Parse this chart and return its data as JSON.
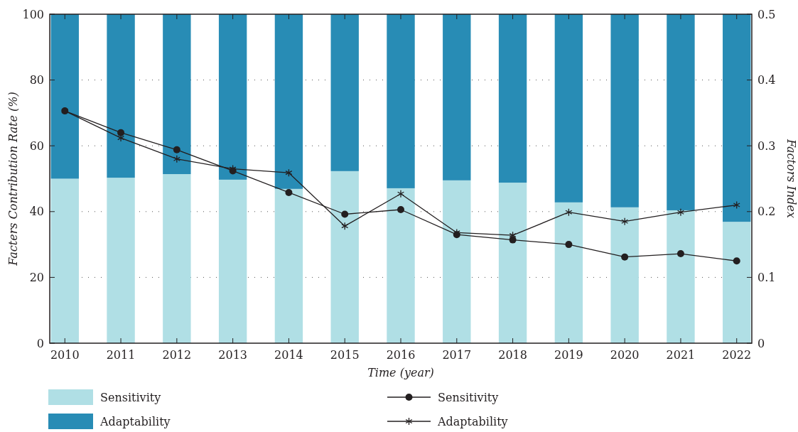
{
  "chart_data": {
    "type": "bar",
    "stacked": true,
    "xlabel": "Time (year)",
    "ylabel": "Facters Contribution Rate (%)",
    "y2label": "Factors Index",
    "categories": [
      "2010",
      "2011",
      "2012",
      "2013",
      "2014",
      "2015",
      "2016",
      "2017",
      "2018",
      "2019",
      "2020",
      "2021",
      "2022"
    ],
    "series": [
      {
        "name": "Sensitivity",
        "type": "bar",
        "color": "#b0dfe5",
        "values": [
          50,
          50.3,
          51.4,
          49.7,
          46.9,
          52.3,
          47.1,
          49.5,
          48.8,
          42.8,
          41.3,
          40.4,
          36.9
        ]
      },
      {
        "name": "Adaptability",
        "type": "bar",
        "color": "#288cb5",
        "values": [
          50,
          49.7,
          48.6,
          50.3,
          53.1,
          47.7,
          52.9,
          50.5,
          51.2,
          57.2,
          58.7,
          59.6,
          63.1
        ]
      },
      {
        "name": "Sensitivity",
        "type": "line",
        "axis": "y2",
        "marker": "circle",
        "color": "#231f20",
        "values": [
          0.353,
          0.32,
          0.294,
          0.262,
          0.229,
          0.196,
          0.203,
          0.165,
          0.157,
          0.15,
          0.131,
          0.136,
          0.125
        ]
      },
      {
        "name": "Adaptability",
        "type": "line",
        "axis": "y2",
        "marker": "cross",
        "color": "#231f20",
        "values": [
          0.353,
          0.312,
          0.28,
          0.265,
          0.259,
          0.178,
          0.227,
          0.168,
          0.164,
          0.199,
          0.185,
          0.199,
          0.21
        ]
      }
    ],
    "ylim": [
      0,
      100
    ],
    "yticks": [
      0,
      20,
      40,
      60,
      80,
      100
    ],
    "y2lim": [
      0,
      0.5
    ],
    "y2ticks": [
      0,
      0.1,
      0.2,
      0.3,
      0.4,
      0.5
    ],
    "grid": "y",
    "legend": "bottom"
  }
}
